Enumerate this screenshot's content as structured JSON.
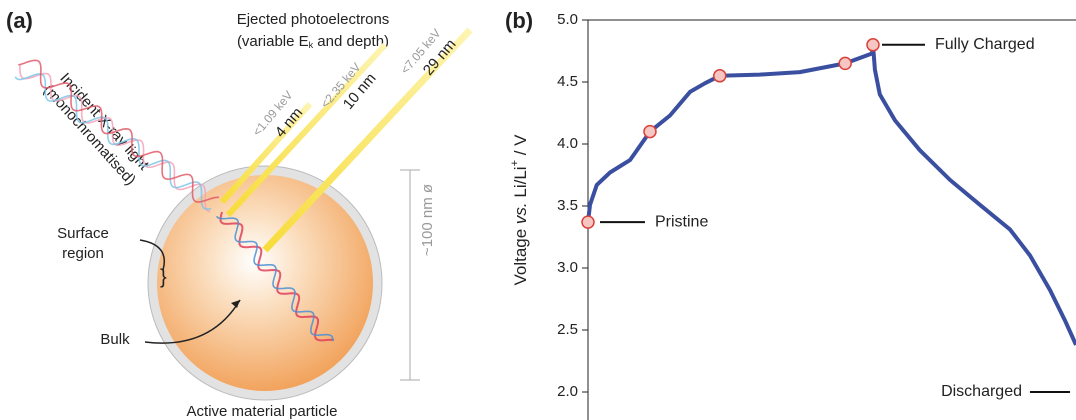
{
  "diagram": {
    "panel_label": "(a)",
    "ejected": [
      "Ejected photoelectrons",
      "(variable E",
      "k",
      " and depth)"
    ],
    "incident": [
      "Incident X-ray light",
      "(monochromatised)"
    ],
    "beams": [
      {
        "energy": "<1.09 keV",
        "depth": "4 nm"
      },
      {
        "energy": "<2.35 keV",
        "depth": "10 nm"
      },
      {
        "energy": "<7.05 keV",
        "depth": "29 nm"
      }
    ],
    "size": "~100 nm ø",
    "surface": [
      "Surface",
      "region"
    ],
    "bulk": "Bulk",
    "particle": "Active material particle"
  },
  "chart_data": {
    "type": "line",
    "panel_label": "(b)",
    "ylabel": [
      "Voltage ",
      "vs.",
      " Li/Li",
      "+",
      " / V"
    ],
    "x": [
      0,
      0.004,
      0.018,
      0.045,
      0.086,
      0.127,
      0.168,
      0.209,
      0.24,
      0.27,
      0.352,
      0.434,
      0.527,
      0.582,
      0.584,
      0.588,
      0.598,
      0.629,
      0.68,
      0.742,
      0.803,
      0.865,
      0.906,
      0.947,
      0.977,
      1
    ],
    "values": [
      3.37,
      3.51,
      3.67,
      3.77,
      3.87,
      4.1,
      4.23,
      4.42,
      4.49,
      4.55,
      4.56,
      4.58,
      4.65,
      4.73,
      4.8,
      4.6,
      4.4,
      4.19,
      3.95,
      3.71,
      3.51,
      3.31,
      3.1,
      2.82,
      2.58,
      2.38
    ],
    "color": "#3a4fa0",
    "markers": {
      "x": [
        0,
        0.127,
        0.27,
        0.527,
        0.584
      ],
      "values": [
        3.37,
        4.1,
        4.55,
        4.65,
        4.8
      ],
      "color": "#f6c6c2",
      "edge": "#d9423a"
    },
    "annotations": [
      {
        "text": "Pristine",
        "y": 3.37
      },
      {
        "text": "Fully Charged",
        "y": 4.8
      },
      {
        "text": "Discharged",
        "y": 2.0
      }
    ],
    "xlim": [
      0,
      1
    ],
    "ylim": [
      2.0,
      5.0
    ],
    "yticks": [
      {
        "value": 2,
        "label": "2.0"
      },
      {
        "value": 2.5,
        "label": "2.5"
      },
      {
        "value": 3,
        "label": "3.0"
      },
      {
        "value": 3.5,
        "label": "3.5"
      },
      {
        "value": 4,
        "label": "4.0"
      },
      {
        "value": 4.5,
        "label": "4.5"
      },
      {
        "value": 5,
        "label": "5.0"
      }
    ]
  }
}
